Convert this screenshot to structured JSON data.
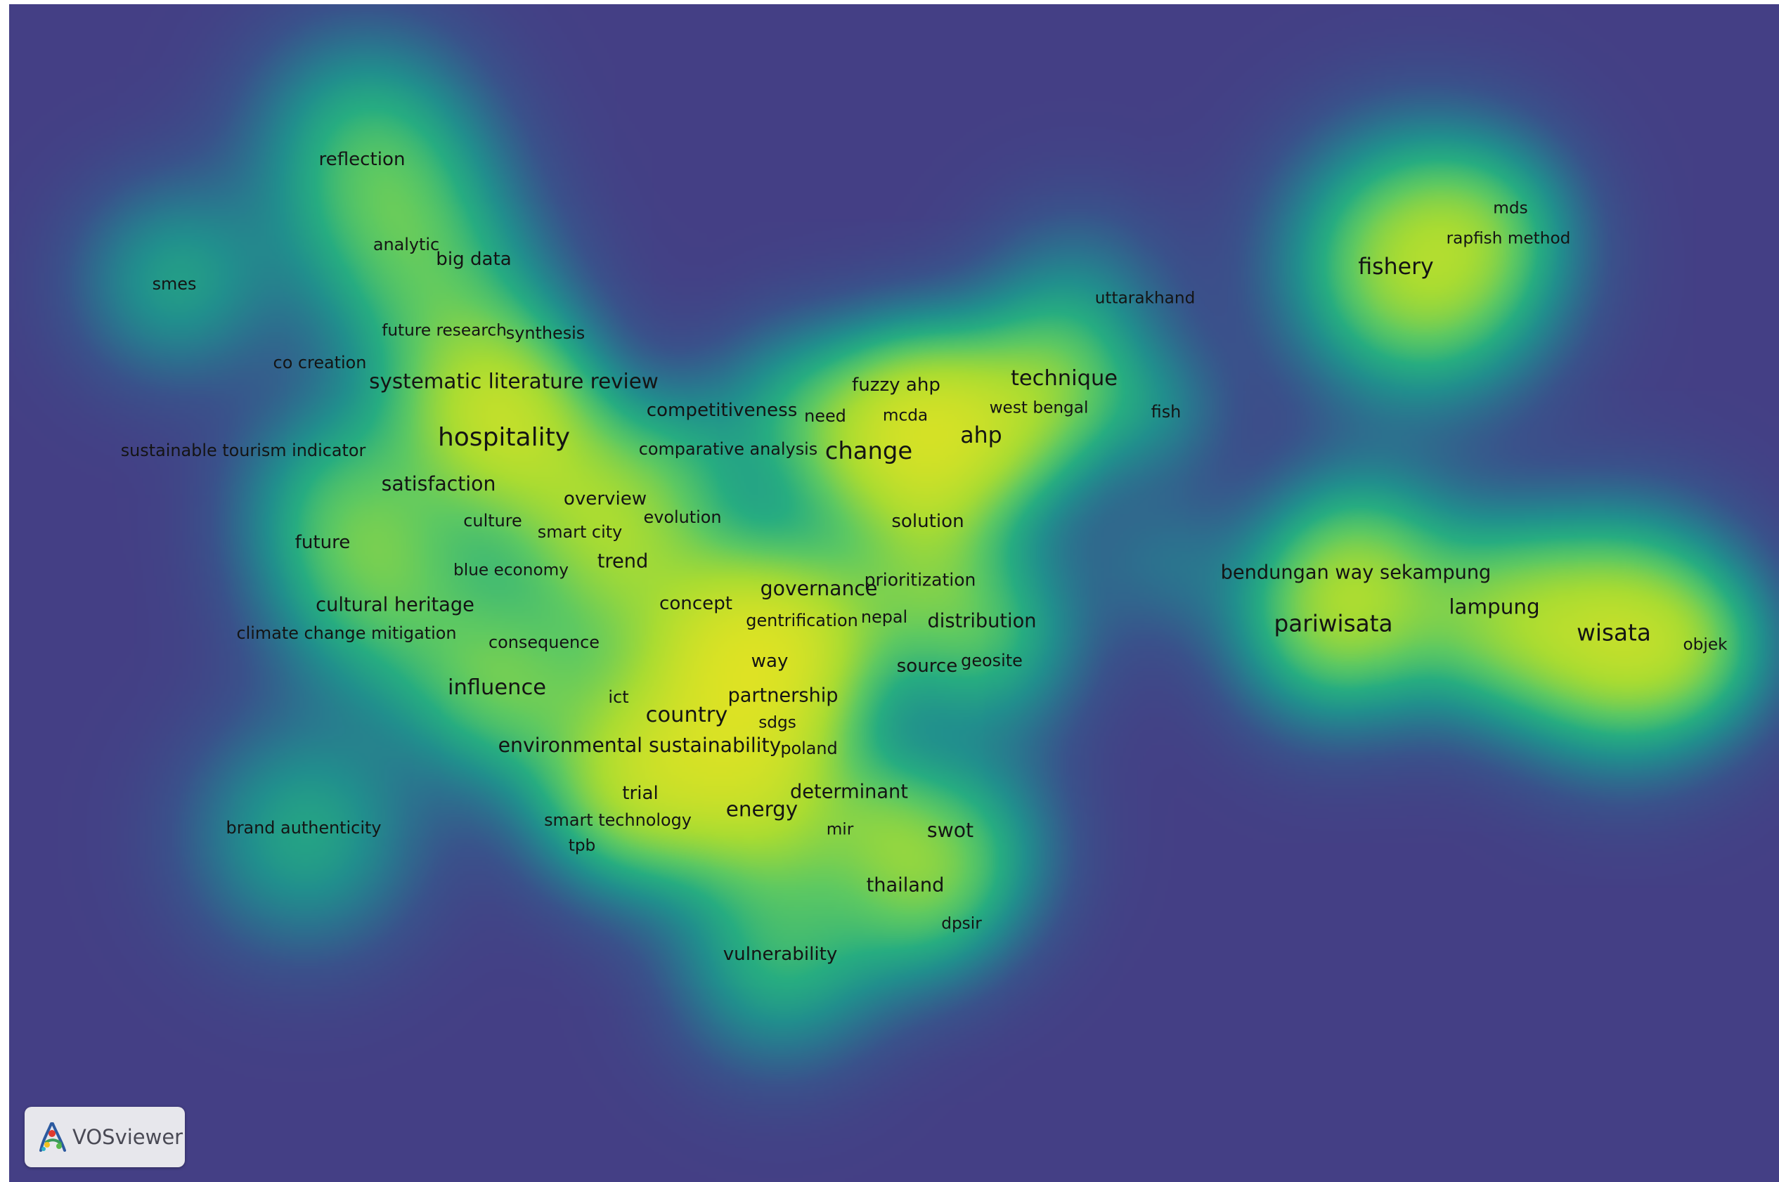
{
  "app": {
    "name": "VOSviewer"
  },
  "map": {
    "type": "item density visualization",
    "colors": {
      "background": "#443f85",
      "low": "#21908d",
      "mid": "#5ec962",
      "high": "#f2e51e"
    },
    "terms": [
      {
        "label": "reflection",
        "weight": 0.55
      },
      {
        "label": "smes",
        "weight": 0.45
      },
      {
        "label": "analytic",
        "weight": 0.45
      },
      {
        "label": "big data",
        "weight": 0.55
      },
      {
        "label": "future research",
        "weight": 0.42
      },
      {
        "label": "synthesis",
        "weight": 0.45
      },
      {
        "label": "co creation",
        "weight": 0.45
      },
      {
        "label": "systematic literature review",
        "weight": 0.7
      },
      {
        "label": "hospitality",
        "weight": 1.0
      },
      {
        "label": "sustainable tourism indicator",
        "weight": 0.45
      },
      {
        "label": "satisfaction",
        "weight": 0.65
      },
      {
        "label": "culture",
        "weight": 0.45
      },
      {
        "label": "overview",
        "weight": 0.55
      },
      {
        "label": "smart city",
        "weight": 0.45
      },
      {
        "label": "future",
        "weight": 0.55
      },
      {
        "label": "trend",
        "weight": 0.6
      },
      {
        "label": "blue economy",
        "weight": 0.42
      },
      {
        "label": "evolution",
        "weight": 0.45
      },
      {
        "label": "cultural heritage",
        "weight": 0.6
      },
      {
        "label": "climate change mitigation",
        "weight": 0.45
      },
      {
        "label": "consequence",
        "weight": 0.45
      },
      {
        "label": "concept",
        "weight": 0.55
      },
      {
        "label": "influence",
        "weight": 0.75
      },
      {
        "label": "competitiveness",
        "weight": 0.55
      },
      {
        "label": "comparative analysis",
        "weight": 0.45
      },
      {
        "label": "fuzzy ahp",
        "weight": 0.55
      },
      {
        "label": "need",
        "weight": 0.45
      },
      {
        "label": "mcda",
        "weight": 0.42
      },
      {
        "label": "technique",
        "weight": 0.75
      },
      {
        "label": "west bengal",
        "weight": 0.42
      },
      {
        "label": "ahp",
        "weight": 0.8
      },
      {
        "label": "change",
        "weight": 0.9
      },
      {
        "label": "uttarakhand",
        "weight": 0.42
      },
      {
        "label": "fish",
        "weight": 0.45
      },
      {
        "label": "solution",
        "weight": 0.55
      },
      {
        "label": "governance",
        "weight": 0.65
      },
      {
        "label": "prioritization",
        "weight": 0.5
      },
      {
        "label": "gentrification",
        "weight": 0.45
      },
      {
        "label": "nepal",
        "weight": 0.45
      },
      {
        "label": "distribution",
        "weight": 0.6
      },
      {
        "label": "way",
        "weight": 0.55
      },
      {
        "label": "source",
        "weight": 0.55
      },
      {
        "label": "geosite",
        "weight": 0.45
      },
      {
        "label": "partnership",
        "weight": 0.6
      },
      {
        "label": "ict",
        "weight": 0.45
      },
      {
        "label": "country",
        "weight": 0.75
      },
      {
        "label": "sdgs",
        "weight": 0.42
      },
      {
        "label": "environmental sustainability",
        "weight": 0.65
      },
      {
        "label": "poland",
        "weight": 0.45
      },
      {
        "label": "trial",
        "weight": 0.55
      },
      {
        "label": "energy",
        "weight": 0.7
      },
      {
        "label": "determinant",
        "weight": 0.6
      },
      {
        "label": "smart technology",
        "weight": 0.45
      },
      {
        "label": "mir",
        "weight": 0.42
      },
      {
        "label": "tpb",
        "weight": 0.42
      },
      {
        "label": "swot",
        "weight": 0.65
      },
      {
        "label": "brand authenticity",
        "weight": 0.45
      },
      {
        "label": "thailand",
        "weight": 0.6
      },
      {
        "label": "dpsir",
        "weight": 0.42
      },
      {
        "label": "vulnerability",
        "weight": 0.55
      },
      {
        "label": "fishery",
        "weight": 0.8
      },
      {
        "label": "mds",
        "weight": 0.42
      },
      {
        "label": "rapfish method",
        "weight": 0.42
      },
      {
        "label": "bendungan way sekampung",
        "weight": 0.6
      },
      {
        "label": "pariwisata",
        "weight": 0.85
      },
      {
        "label": "lampung",
        "weight": 0.7
      },
      {
        "label": "wisata",
        "weight": 0.85
      },
      {
        "label": "objek",
        "weight": 0.42
      }
    ]
  }
}
